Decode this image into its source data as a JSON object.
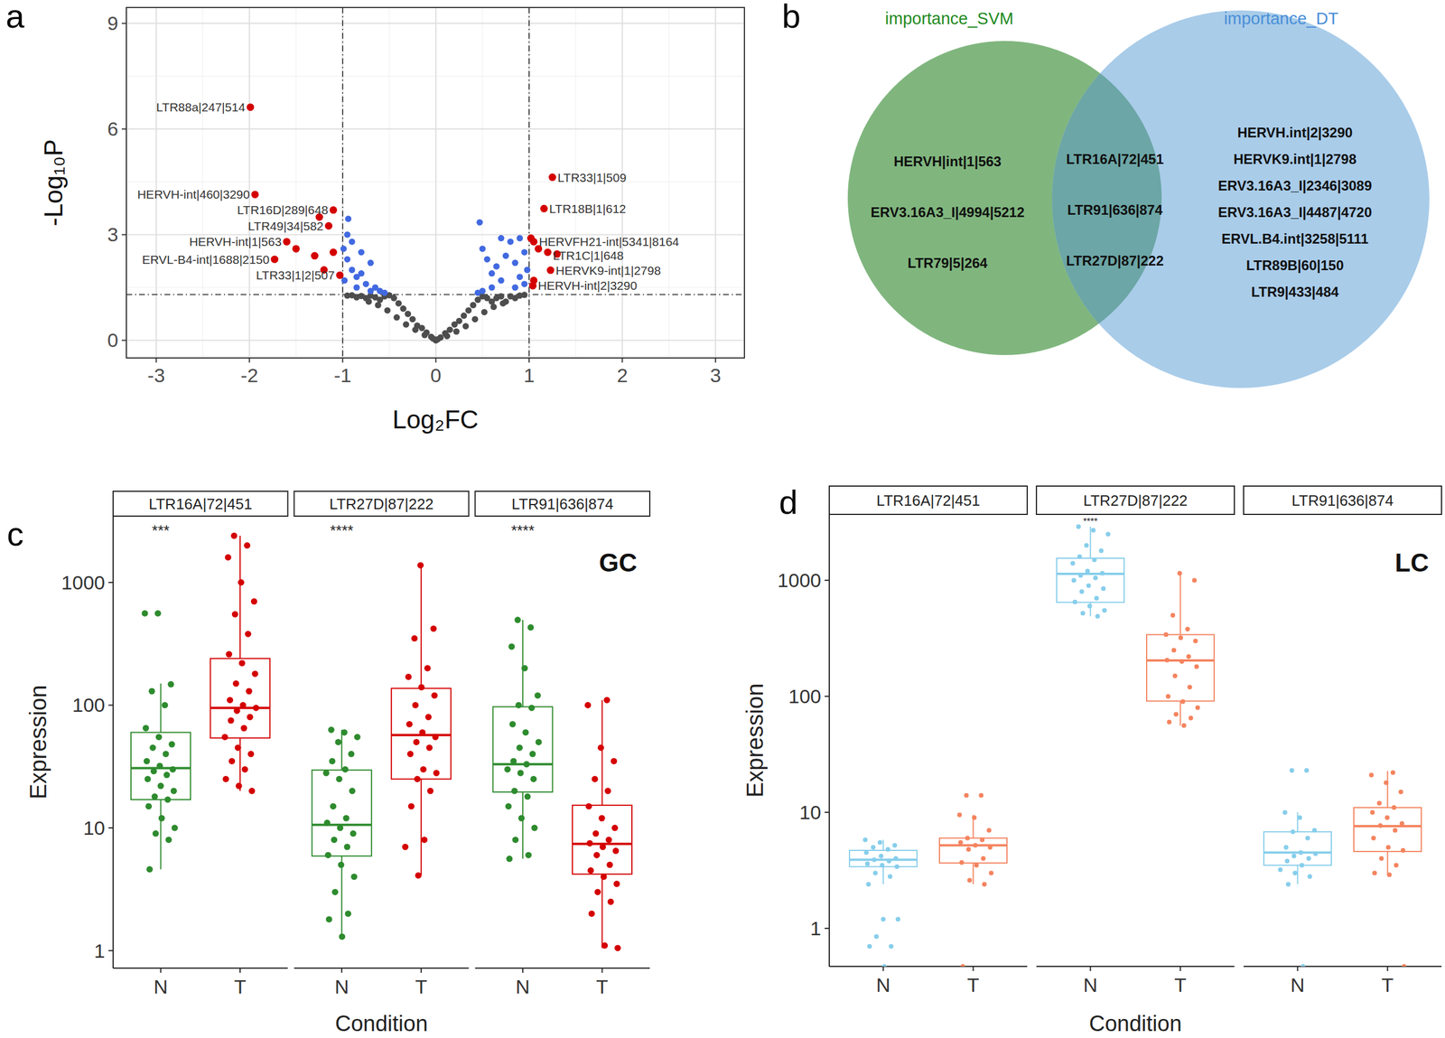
{
  "chart_data": [
    {
      "type": "scatter",
      "panel_label": "a",
      "x_label": "Log₂FC",
      "y_label": "-Log₁₀P",
      "xlim": [
        -3.32,
        3.31
      ],
      "ylim": [
        -0.5,
        9.45
      ],
      "xticks": [
        -3,
        -2,
        -1,
        0,
        1,
        2,
        3
      ],
      "yticks": [
        0,
        3,
        6,
        9
      ],
      "grid": true,
      "thresholds": {
        "x": [
          -1,
          1
        ],
        "y": 1.3
      },
      "series": [
        {
          "color": "#4d4d4d",
          "x": [
            0,
            0.05,
            -0.05,
            0.1,
            -0.1,
            0.15,
            -0.15,
            0.2,
            -0.2,
            0.25,
            -0.25,
            0.3,
            -0.3,
            0.35,
            -0.35,
            0.4,
            -0.4,
            0.45,
            -0.45,
            0.5,
            -0.5,
            0.55,
            -0.55,
            0.6,
            -0.6,
            0.65,
            -0.65,
            0.7,
            -0.7,
            0.75,
            -0.75,
            0.8,
            -0.8,
            0.85,
            -0.85,
            0.9,
            -0.9,
            0.95,
            -0.95,
            0.12,
            -0.12,
            0.22,
            -0.22,
            0.32,
            -0.32,
            0.42,
            -0.42,
            0.52,
            -0.52,
            0.62,
            -0.62,
            0.72,
            -0.72,
            0.02,
            -0.03
          ],
          "values": [
            0,
            0.08,
            0.1,
            0.2,
            0.22,
            0.3,
            0.35,
            0.45,
            0.42,
            0.55,
            0.6,
            0.7,
            0.75,
            0.85,
            0.9,
            1.0,
            1.05,
            1.15,
            1.2,
            1.25,
            1.28,
            1.2,
            1.25,
            1.1,
            1.15,
            1.2,
            1.22,
            1.25,
            1.27,
            1.1,
            1.2,
            1.25,
            1.26,
            1.2,
            1.22,
            1.27,
            1.28,
            1.29,
            1.27,
            0.12,
            0.15,
            0.25,
            0.3,
            0.4,
            0.45,
            0.6,
            0.65,
            0.8,
            0.85,
            0.95,
            1.0,
            1.05,
            1.1,
            0.03,
            0.05
          ]
        },
        {
          "color": "#4169e1",
          "x": [
            -0.95,
            -0.9,
            -0.85,
            -0.8,
            -0.75,
            -0.7,
            -0.65,
            -0.99,
            -0.98,
            -0.6,
            -0.55,
            -0.9,
            -0.95,
            -0.85,
            -0.8,
            -0.7,
            -0.94,
            0.47,
            0.5,
            0.55,
            0.6,
            0.65,
            0.7,
            0.75,
            0.8,
            0.85,
            0.9,
            0.95,
            0.98,
            0.6,
            0.5,
            0.45,
            0.85,
            0.95,
            0.7,
            0.9
          ],
          "values": [
            2.3,
            2.0,
            1.8,
            2.5,
            1.6,
            2.2,
            1.5,
            2.6,
            1.7,
            1.4,
            1.35,
            2.8,
            3.0,
            1.5,
            1.9,
            1.4,
            3.45,
            3.35,
            2.6,
            2.3,
            1.9,
            2.1,
            1.7,
            2.4,
            2.8,
            2.2,
            1.8,
            2.5,
            2.0,
            1.5,
            1.4,
            1.35,
            1.5,
            1.6,
            2.9,
            2.9
          ]
        },
        {
          "color": "#d40000",
          "x": [
            -1.99,
            -1.94,
            -1.1,
            -1.15,
            -1.6,
            -1.73,
            -1.03,
            1.25,
            1.16,
            1.05,
            1.2,
            1.23,
            1.04,
            -1.5,
            -1.3,
            -1.25,
            -1.2,
            -1.1,
            1.1,
            1.3,
            1.05,
            1.02
          ],
          "values": [
            6.62,
            4.14,
            3.7,
            3.25,
            2.8,
            2.3,
            1.85,
            4.63,
            3.74,
            2.8,
            2.5,
            1.99,
            1.55,
            2.6,
            2.4,
            3.5,
            2.0,
            2.5,
            2.6,
            2.45,
            1.7,
            2.9
          ],
          "labels": [
            "LTR88a|247|514",
            "HERVH-int|460|3290",
            "LTR16D|289|648",
            "LTR49|34|582",
            "HERVH-int|1|563",
            "ERVL-B4-int|1688|2150",
            "LTR33|1|2|507",
            "LTR33|1|509",
            "LTR18B|1|612",
            "HERVFH21-int|5341|8164",
            "LTR1C|1|648",
            "HERVK9-int|1|2798",
            "HERVH-int|2|3290",
            null,
            null,
            null,
            null,
            null,
            null,
            null,
            null,
            null
          ]
        }
      ]
    },
    {
      "type": "box",
      "panel_label": "c",
      "annotation": "GC",
      "x_label": "Condition",
      "y_label": "Expression",
      "log": "y",
      "ylim": [
        0.72,
        3470
      ],
      "yticks": [
        1,
        10,
        100,
        1000
      ],
      "categories": [
        "N",
        "T"
      ],
      "colors": [
        "#2e8b2e",
        "#d40000"
      ],
      "facets": [
        {
          "title": "LTR16A|72|451",
          "significance": "***",
          "whisker_low": [
            4.6,
            20
          ],
          "q1": [
            17,
            54
          ],
          "median": [
            30.7,
            95
          ],
          "q3": [
            60,
            240
          ],
          "whisker_high": [
            150,
            2400
          ],
          "points": [
            [
              560,
              560,
              148,
              130,
              100,
              65,
              55,
              48,
              45,
              40,
              35,
              32,
              30,
              29,
              27,
              25,
              22,
              20,
              18,
              17,
              15,
              12,
              10,
              9,
              8,
              4.6
            ],
            [
              2400,
              2000,
              1600,
              1000,
              700,
              550,
              380,
              260,
              220,
              180,
              150,
              130,
              110,
              100,
              95,
              90,
              80,
              75,
              65,
              55,
              45,
              40,
              35,
              30,
              25,
              22,
              20
            ]
          ]
        },
        {
          "title": "LTR27D|87|222",
          "significance": "****",
          "whisker_low": [
            1.3,
            4.1
          ],
          "q1": [
            5.9,
            25
          ],
          "median": [
            10.6,
            57
          ],
          "q3": [
            29.6,
            137
          ],
          "whisker_high": [
            63,
            1380
          ],
          "points": [
            [
              63,
              60,
              55,
              50,
              40,
              35,
              30,
              28,
              25,
              20,
              15,
              12,
              11,
              10,
              9,
              8,
              7,
              6,
              5,
              4,
              3,
              2,
              1.8,
              1.3
            ],
            [
              1380,
              420,
              350,
              200,
              170,
              140,
              120,
              100,
              80,
              70,
              60,
              55,
              50,
              45,
              40,
              30,
              28,
              25,
              20,
              15,
              8,
              7,
              4.1
            ]
          ]
        },
        {
          "title": "LTR91|636|874",
          "significance": "****",
          "whisker_low": [
            5.6,
            1.05
          ],
          "q1": [
            19.6,
            4.2
          ],
          "median": [
            33,
            7.4
          ],
          "q3": [
            97,
            15.3
          ],
          "whisker_high": [
            495,
            110
          ],
          "points": [
            [
              495,
              430,
              300,
              200,
              120,
              100,
              95,
              70,
              60,
              50,
              45,
              40,
              35,
              33,
              30,
              28,
              25,
              20,
              18,
              15,
              12,
              10,
              8,
              6,
              5.6
            ],
            [
              110,
              100,
              45,
              35,
              25,
              20,
              15,
              12,
              10,
              9,
              8,
              7.5,
              7,
              6.5,
              6,
              5,
              4.5,
              4,
              3.5,
              3,
              2.5,
              2,
              1.1,
              1.05
            ]
          ]
        }
      ]
    },
    {
      "type": "box",
      "panel_label": "d",
      "annotation": "LC",
      "x_label": "Condition",
      "y_label": "Expression",
      "log": "y",
      "ylim": [
        0.47,
        3700
      ],
      "yticks": [
        1,
        10,
        100,
        1000
      ],
      "categories": [
        "N",
        "T"
      ],
      "colors": [
        "#87ceeb",
        "#f4845f"
      ],
      "facets": [
        {
          "title": "LTR16A|72|451",
          "whisker_low": [
            2.4,
            2.4
          ],
          "q1": [
            3.4,
            3.66
          ],
          "median": [
            3.9,
            5.2
          ],
          "q3": [
            4.7,
            6
          ],
          "whisker_high": [
            5.8,
            9.5
          ],
          "points": [
            [
              5.8,
              5.5,
              5.2,
              5,
              4.8,
              4.5,
              4.2,
              4,
              3.9,
              3.8,
              3.6,
              3.5,
              3.4,
              3,
              2.8,
              2.4,
              1.2,
              1.2,
              0.85,
              0.7,
              0.7,
              0.47
            ],
            [
              14,
              14,
              9.5,
              9,
              7,
              6,
              5.8,
              5.5,
              5.2,
              5,
              4.8,
              4,
              3.7,
              3.5,
              3,
              2.6,
              2.4,
              0.47
            ]
          ]
        },
        {
          "title": "LTR27D|87|222",
          "significance": "****",
          "whisker_low": [
            490,
            56
          ],
          "q1": [
            646,
            91
          ],
          "median": [
            1137,
            204
          ],
          "q3": [
            1550,
            340
          ],
          "whisker_high": [
            2900,
            1150
          ],
          "points": [
            [
              2900,
              2700,
              2500,
              2000,
              1800,
              1600,
              1500,
              1400,
              1200,
              1150,
              1100,
              1050,
              1000,
              900,
              850,
              800,
              700,
              650,
              600,
              550,
              520,
              490
            ],
            [
              1150,
              1000,
              500,
              380,
              340,
              320,
              300,
              250,
              220,
              205,
              200,
              180,
              150,
              120,
              100,
              90,
              80,
              70,
              65,
              60,
              56
            ]
          ]
        },
        {
          "title": "LTR91|636|874",
          "whisker_low": [
            2.4,
            2.9
          ],
          "q1": [
            3.5,
            4.6
          ],
          "median": [
            4.5,
            7.6
          ],
          "q3": [
            6.8,
            11
          ],
          "whisker_high": [
            10,
            22.7
          ],
          "points": [
            [
              23,
              23,
              10,
              9,
              7,
              6.8,
              6,
              5,
              4.5,
              4.4,
              4.2,
              4,
              3.8,
              3.5,
              3.2,
              3,
              2.8,
              2.4,
              0.47
            ],
            [
              22,
              21,
              18,
              15,
              12,
              11,
              10,
              9,
              8,
              7.7,
              7,
              6,
              5,
              4.7,
              4,
              3.5,
              3,
              2.9,
              0.47
            ]
          ]
        }
      ]
    }
  ],
  "venn": {
    "panel_label": "b",
    "sets": [
      {
        "title": "importance_SVM",
        "color": "#80b67e",
        "title_color": "#1f8a1f",
        "only": [
          "HERVH|int|1|563",
          "ERV3.16A3_I|4994|5212",
          "LTR79|5|264"
        ]
      },
      {
        "title": "importance_DT",
        "color": "#a9cce9",
        "title_color": "#4a8fd8",
        "only": [
          "HERVH.int|2|3290",
          "HERVK9.int|1|2798",
          "ERV3.16A3_I|2346|3089",
          "ERV3.16A3_I|4487|4720",
          "ERVL.B4.int|3258|5111",
          "LTR89B|60|150",
          "LTR9|433|484"
        ]
      }
    ],
    "both": [
      "LTR16A|72|451",
      "LTR91|636|874",
      "LTR27D|87|222"
    ],
    "both_color": "#6ca6a6"
  }
}
